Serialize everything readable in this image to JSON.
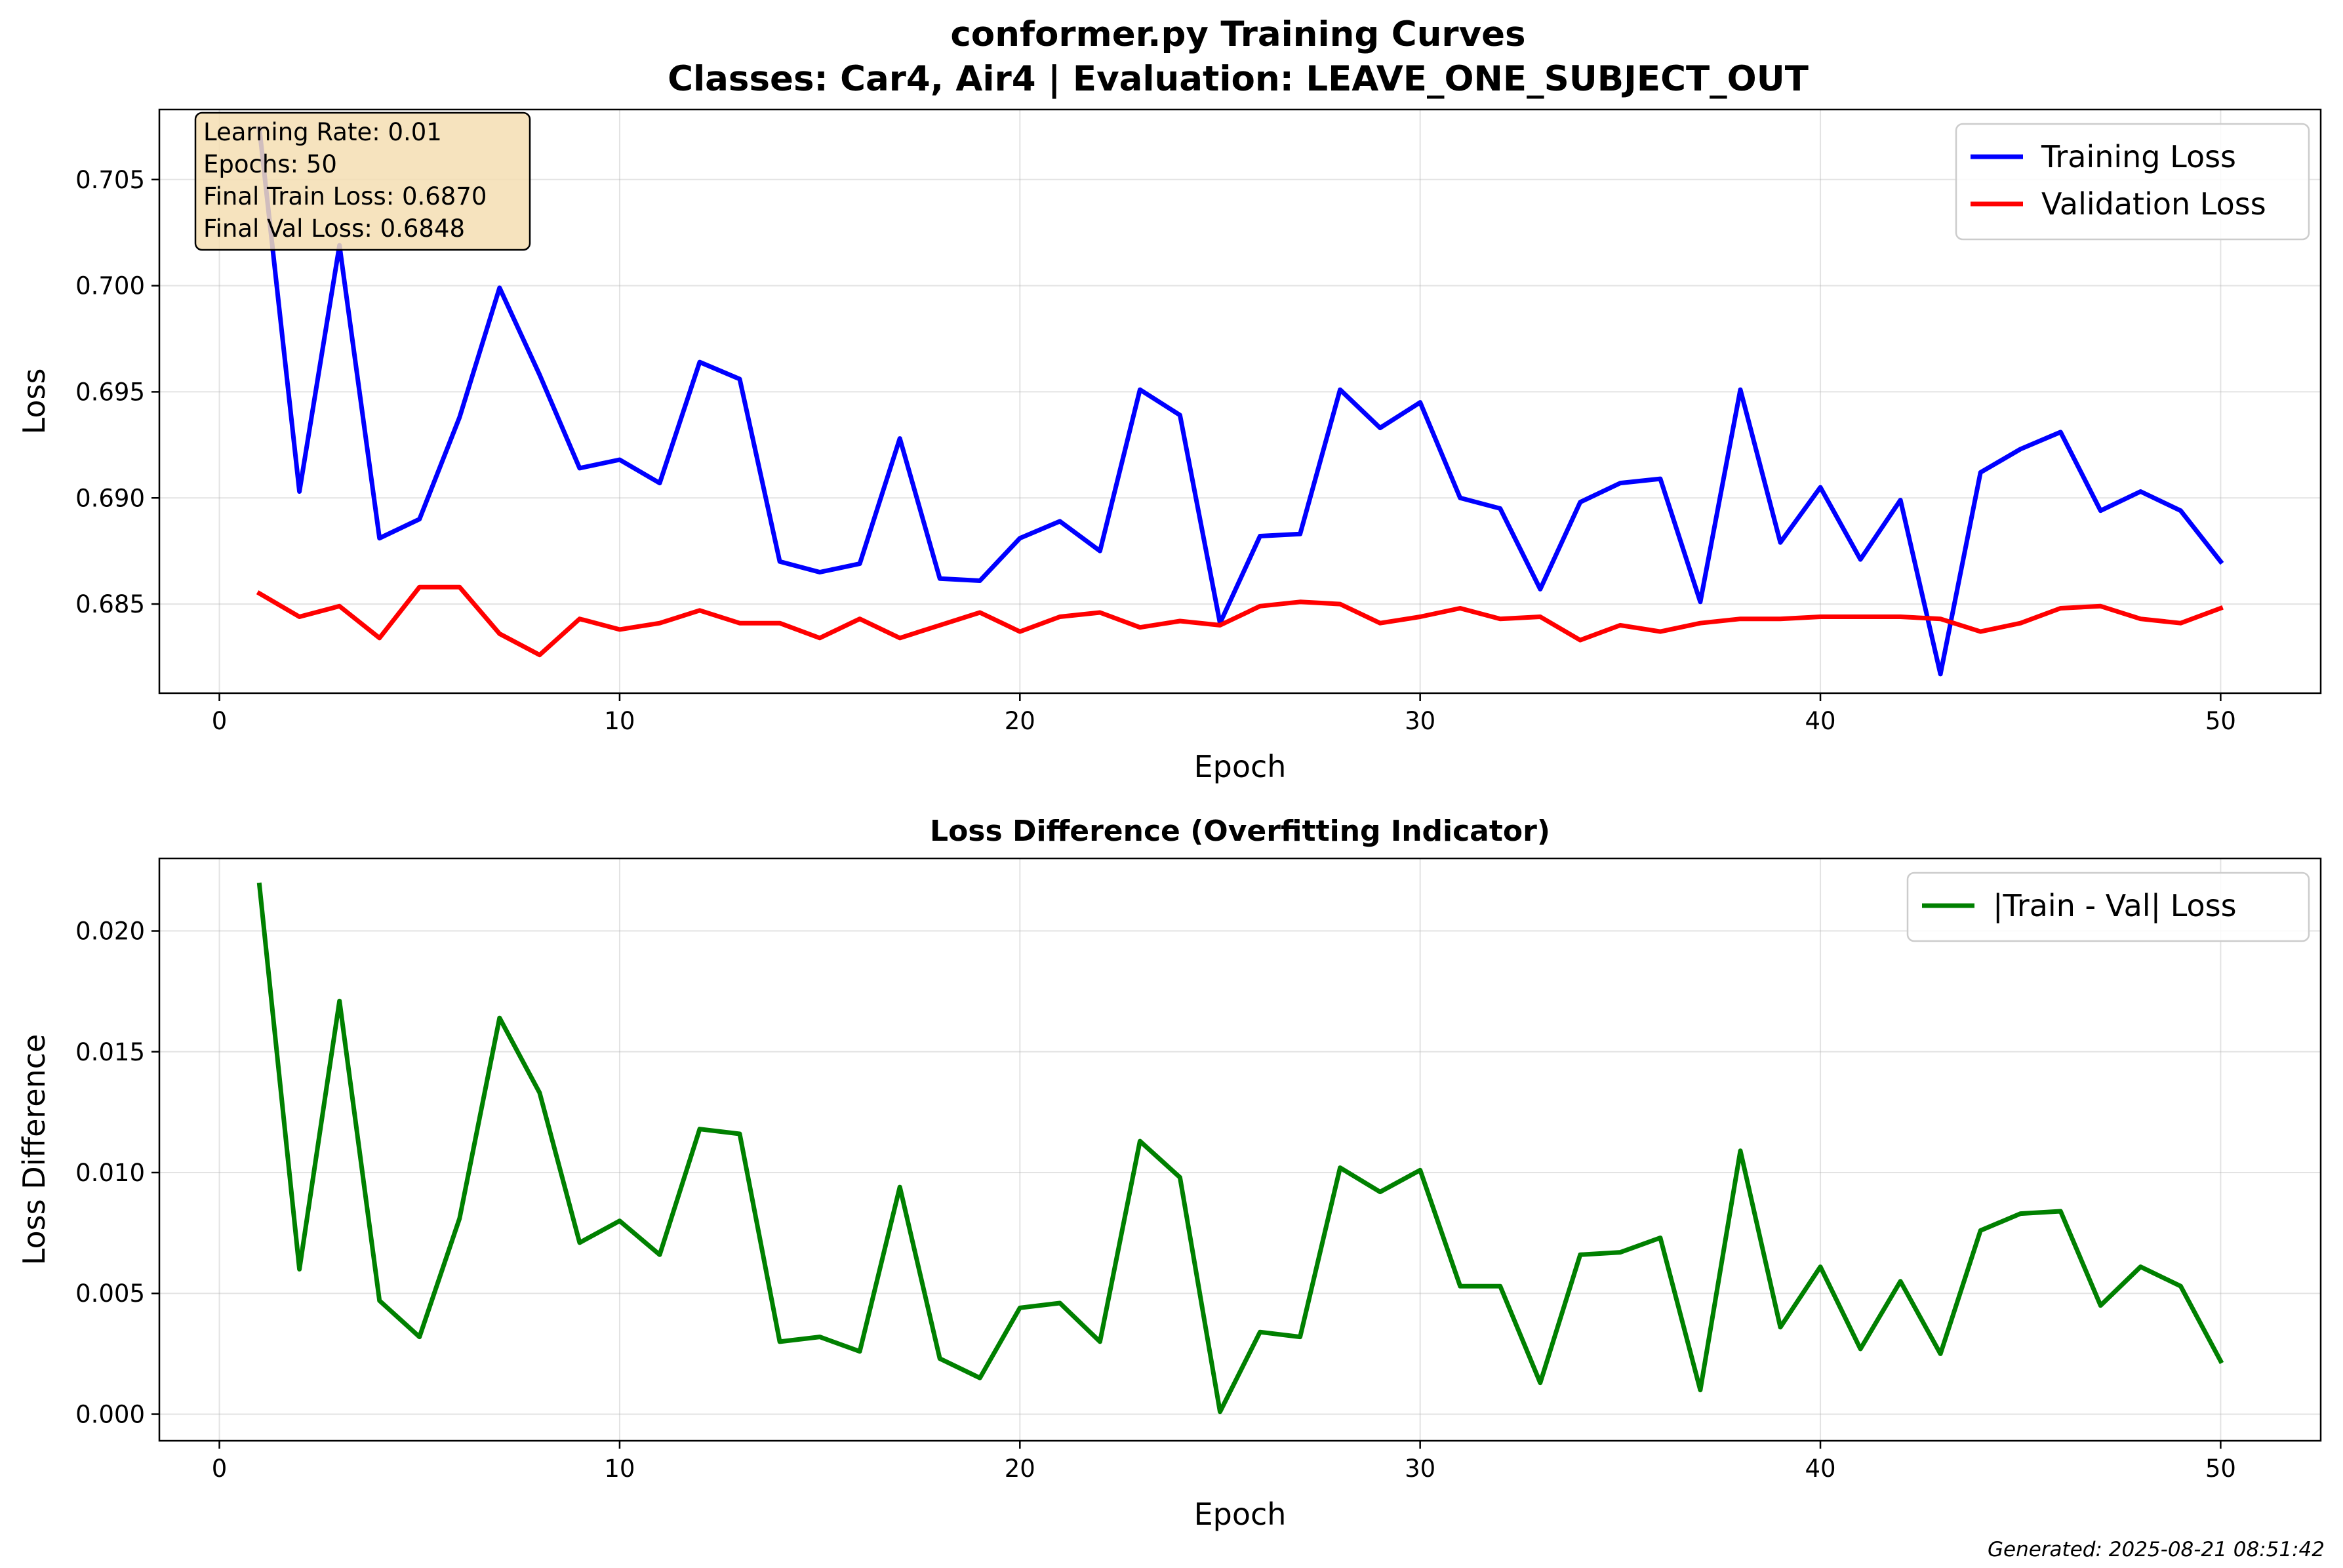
{
  "figure": {
    "title_line1": "conformer.py Training Curves",
    "title_line2": "Classes: Car4, Air4 | Evaluation: LEAVE_ONE_SUBJECT_OUT",
    "footer": "Generated: 2025-08-21 08:51:42",
    "info_box": [
      "Learning Rate: 0.01",
      "Epochs: 50",
      "Final Train Loss: 0.6870",
      "Final Val Loss: 0.6848"
    ]
  },
  "chart_data": [
    {
      "type": "line",
      "title": "",
      "xlabel": "Epoch",
      "ylabel": "Loss",
      "xlim": [
        -1.5,
        52.5
      ],
      "ylim": [
        0.6808,
        0.7083
      ],
      "xticks": [
        "0",
        "10",
        "20",
        "30",
        "40",
        "50"
      ],
      "yticks": [
        "0.685",
        "0.690",
        "0.695",
        "0.700",
        "0.705"
      ],
      "grid": true,
      "legend": "top-right",
      "x": [
        1,
        2,
        3,
        4,
        5,
        6,
        7,
        8,
        9,
        10,
        11,
        12,
        13,
        14,
        15,
        16,
        17,
        18,
        19,
        20,
        21,
        22,
        23,
        24,
        25,
        26,
        27,
        28,
        29,
        30,
        31,
        32,
        33,
        34,
        35,
        36,
        37,
        38,
        39,
        40,
        41,
        42,
        43,
        44,
        45,
        46,
        47,
        48,
        49,
        50
      ],
      "series": [
        {
          "name": "Training Loss",
          "color": "#0000ff",
          "values": [
            0.7074,
            0.6903,
            0.7019,
            0.6881,
            0.689,
            0.6938,
            0.6999,
            0.6958,
            0.6914,
            0.6918,
            0.6907,
            0.6964,
            0.6956,
            0.687,
            0.6865,
            0.6869,
            0.6928,
            0.6862,
            0.6861,
            0.6881,
            0.6889,
            0.6875,
            0.6951,
            0.6939,
            0.6841,
            0.6882,
            0.6883,
            0.6951,
            0.6933,
            0.6945,
            0.69,
            0.6895,
            0.6857,
            0.6898,
            0.6907,
            0.6909,
            0.6851,
            0.6951,
            0.6879,
            0.6905,
            0.6871,
            0.6899,
            0.6817,
            0.6912,
            0.6923,
            0.6931,
            0.6894,
            0.6903,
            0.6894,
            0.687
          ]
        },
        {
          "name": "Validation Loss",
          "color": "#ff0000",
          "values": [
            0.6855,
            0.6844,
            0.6849,
            0.6834,
            0.6858,
            0.6858,
            0.6836,
            0.6826,
            0.6843,
            0.6838,
            0.6841,
            0.6847,
            0.6841,
            0.6841,
            0.6834,
            0.6843,
            0.6834,
            0.684,
            0.6846,
            0.6837,
            0.6844,
            0.6846,
            0.6839,
            0.6842,
            0.684,
            0.6849,
            0.6851,
            0.685,
            0.6841,
            0.6844,
            0.6848,
            0.6843,
            0.6844,
            0.6833,
            0.684,
            0.6837,
            0.6841,
            0.6843,
            0.6843,
            0.6844,
            0.6844,
            0.6844,
            0.6843,
            0.6837,
            0.6841,
            0.6848,
            0.6849,
            0.6843,
            0.6841,
            0.6848
          ]
        }
      ]
    },
    {
      "type": "line",
      "title": "Loss Difference (Overfitting Indicator)",
      "xlabel": "Epoch",
      "ylabel": "Loss Difference",
      "xlim": [
        -1.5,
        52.5
      ],
      "ylim": [
        -0.0011,
        0.023
      ],
      "xticks": [
        "0",
        "10",
        "20",
        "30",
        "40",
        "50"
      ],
      "yticks": [
        "0.000",
        "0.005",
        "0.010",
        "0.015",
        "0.020"
      ],
      "grid": true,
      "legend": "top-right",
      "x": [
        1,
        2,
        3,
        4,
        5,
        6,
        7,
        8,
        9,
        10,
        11,
        12,
        13,
        14,
        15,
        16,
        17,
        18,
        19,
        20,
        21,
        22,
        23,
        24,
        25,
        26,
        27,
        28,
        29,
        30,
        31,
        32,
        33,
        34,
        35,
        36,
        37,
        38,
        39,
        40,
        41,
        42,
        43,
        44,
        45,
        46,
        47,
        48,
        49,
        50
      ],
      "series": [
        {
          "name": "|Train - Val| Loss",
          "color": "#008000",
          "values": [
            0.0219,
            0.006,
            0.0171,
            0.0047,
            0.0032,
            0.0081,
            0.0164,
            0.0133,
            0.0071,
            0.008,
            0.0066,
            0.0118,
            0.0116,
            0.003,
            0.0032,
            0.0026,
            0.0094,
            0.0023,
            0.0015,
            0.0044,
            0.0046,
            0.003,
            0.0113,
            0.0098,
            0.0001,
            0.0034,
            0.0032,
            0.0102,
            0.0092,
            0.0101,
            0.0053,
            0.0053,
            0.0013,
            0.0066,
            0.0067,
            0.0073,
            0.001,
            0.0109,
            0.0036,
            0.0061,
            0.0027,
            0.0055,
            0.0025,
            0.0076,
            0.0083,
            0.0084,
            0.0045,
            0.0061,
            0.0053,
            0.0022
          ]
        }
      ]
    }
  ]
}
